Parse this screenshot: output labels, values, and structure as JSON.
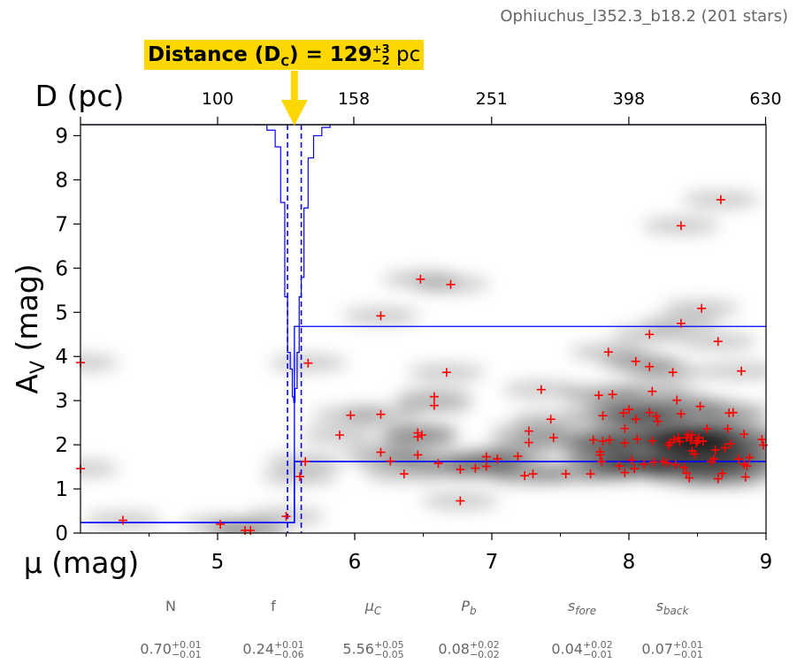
{
  "header": {
    "title": "Ophiuchus_l352.3_b18.2 (201 stars)",
    "distance_label": "Distance (D",
    "distance_sub": "C",
    "distance_eq": ") = 129",
    "distance_plus": "+3",
    "distance_minus": "−2",
    "distance_unit": " pc"
  },
  "chart_data": {
    "type": "scatter",
    "title": "Ophiuchus_l352.3_b18.2 (201 stars)",
    "xlabel": "μ (mag)",
    "ylabel": "A_V (mag)",
    "x2label": "D (pc)",
    "xlim": [
      4,
      9
    ],
    "ylim": [
      0,
      9.25
    ],
    "xticks": [
      5,
      6,
      7,
      8,
      9
    ],
    "xtick_labels": [
      "5",
      "6",
      "7",
      "8",
      "9"
    ],
    "yticks": [
      0,
      1,
      2,
      3,
      4,
      5,
      6,
      7,
      8,
      9
    ],
    "ytick_labels": [
      "0",
      "1",
      "2",
      "3",
      "4",
      "5",
      "6",
      "7",
      "8",
      "9"
    ],
    "top_ticks_pc": [
      100,
      158,
      251,
      398,
      630
    ],
    "top_tick_labels": [
      "100",
      "158",
      "251",
      "398",
      "630"
    ],
    "distance_pc": 129,
    "mu_c": 5.56,
    "mu_c_lo": 5.51,
    "mu_c_hi": 5.61,
    "av_fore": 0.24,
    "av_back": 1.62,
    "av_back_upper": 4.68,
    "marker_color": "#ff0000",
    "line_color": "#0000ff",
    "stars": [
      [
        4.0,
        3.86
      ],
      [
        4.0,
        1.46
      ],
      [
        4.31,
        0.29
      ],
      [
        5.02,
        0.2
      ],
      [
        5.2,
        0.06
      ],
      [
        5.24,
        0.06
      ],
      [
        5.5,
        0.38
      ],
      [
        5.6,
        1.28
      ],
      [
        5.64,
        1.62
      ],
      [
        5.66,
        3.85
      ],
      [
        5.89,
        2.22
      ],
      [
        5.97,
        2.67
      ],
      [
        6.19,
        4.92
      ],
      [
        6.19,
        2.69
      ],
      [
        6.19,
        1.83
      ],
      [
        6.26,
        1.63
      ],
      [
        6.36,
        1.34
      ],
      [
        6.46,
        2.27
      ],
      [
        6.46,
        2.18
      ],
      [
        6.46,
        1.77
      ],
      [
        6.48,
        5.75
      ],
      [
        6.49,
        2.22
      ],
      [
        6.58,
        3.09
      ],
      [
        6.58,
        2.89
      ],
      [
        6.61,
        1.58
      ],
      [
        6.67,
        3.64
      ],
      [
        6.7,
        5.63
      ],
      [
        6.77,
        1.44
      ],
      [
        6.77,
        0.73
      ],
      [
        6.88,
        1.47
      ],
      [
        6.96,
        1.51
      ],
      [
        6.96,
        1.73
      ],
      [
        7.04,
        1.68
      ],
      [
        7.19,
        1.74
      ],
      [
        7.24,
        1.3
      ],
      [
        7.27,
        2.31
      ],
      [
        7.27,
        2.05
      ],
      [
        7.3,
        1.34
      ],
      [
        7.36,
        3.25
      ],
      [
        7.43,
        2.58
      ],
      [
        7.45,
        2.16
      ],
      [
        7.54,
        1.34
      ],
      [
        7.72,
        1.34
      ],
      [
        7.74,
        2.11
      ],
      [
        7.78,
        3.12
      ],
      [
        7.79,
        1.84
      ],
      [
        7.79,
        1.77
      ],
      [
        7.8,
        1.62
      ],
      [
        7.81,
        2.08
      ],
      [
        7.81,
        2.66
      ],
      [
        7.85,
        4.1
      ],
      [
        7.86,
        2.11
      ],
      [
        7.88,
        3.14
      ],
      [
        7.93,
        1.52
      ],
      [
        7.96,
        2.72
      ],
      [
        7.97,
        2.37
      ],
      [
        7.97,
        2.04
      ],
      [
        7.97,
        1.37
      ],
      [
        8.0,
        2.8
      ],
      [
        8.02,
        1.65
      ],
      [
        8.04,
        1.46
      ],
      [
        8.05,
        3.89
      ],
      [
        8.05,
        2.58
      ],
      [
        8.06,
        2.13
      ],
      [
        8.11,
        1.56
      ],
      [
        8.15,
        4.5
      ],
      [
        8.15,
        3.77
      ],
      [
        8.15,
        2.73
      ],
      [
        8.17,
        3.21
      ],
      [
        8.17,
        2.09
      ],
      [
        8.18,
        1.61
      ],
      [
        8.2,
        2.65
      ],
      [
        8.21,
        2.53
      ],
      [
        8.25,
        1.62
      ],
      [
        8.28,
        1.59
      ],
      [
        8.29,
        1.99
      ],
      [
        8.3,
        2.05
      ],
      [
        8.32,
        3.64
      ],
      [
        8.33,
        2.12
      ],
      [
        8.34,
        1.55
      ],
      [
        8.35,
        3.01
      ],
      [
        8.36,
        2.16
      ],
      [
        8.37,
        2.07
      ],
      [
        8.38,
        6.96
      ],
      [
        8.38,
        4.75
      ],
      [
        8.38,
        2.7
      ],
      [
        8.4,
        1.49
      ],
      [
        8.42,
        1.36
      ],
      [
        8.42,
        2.16
      ],
      [
        8.43,
        2.23
      ],
      [
        8.44,
        1.25
      ],
      [
        8.45,
        2.1
      ],
      [
        8.46,
        2.22
      ],
      [
        8.46,
        1.86
      ],
      [
        8.48,
        1.79
      ],
      [
        8.49,
        2.04
      ],
      [
        8.5,
        2.09
      ],
      [
        8.51,
        2.16
      ],
      [
        8.52,
        2.87
      ],
      [
        8.53,
        5.09
      ],
      [
        8.54,
        2.08
      ],
      [
        8.57,
        2.36
      ],
      [
        8.6,
        1.62
      ],
      [
        8.62,
        1.68
      ],
      [
        8.63,
        1.88
      ],
      [
        8.65,
        4.34
      ],
      [
        8.65,
        1.23
      ],
      [
        8.67,
        7.55
      ],
      [
        8.68,
        1.35
      ],
      [
        8.7,
        1.93
      ],
      [
        8.72,
        2.36
      ],
      [
        8.73,
        2.72
      ],
      [
        8.74,
        2.02
      ],
      [
        8.76,
        2.73
      ],
      [
        8.8,
        1.68
      ],
      [
        8.82,
        3.67
      ],
      [
        8.84,
        1.56
      ],
      [
        8.84,
        2.24
      ],
      [
        8.85,
        1.27
      ],
      [
        8.86,
        1.52
      ],
      [
        8.88,
        1.71
      ],
      [
        8.97,
        2.12
      ],
      [
        8.98,
        1.99
      ]
    ]
  },
  "params": [
    {
      "name": "N",
      "val": "0.70",
      "up": "+0.01",
      "lo": "−0.01",
      "italic": false
    },
    {
      "name": "f",
      "val": "0.24",
      "up": "+0.01",
      "lo": "−0.06",
      "italic": false
    },
    {
      "name": "μ",
      "sub": "C",
      "val": "5.56",
      "up": "+0.05",
      "lo": "−0.05",
      "italic": true
    },
    {
      "name": "P",
      "sub": "b",
      "val": "0.08",
      "up": "+0.02",
      "lo": "−0.02",
      "italic": true
    },
    {
      "name": "s",
      "sub": "fore",
      "val": "0.04",
      "up": "+0.02",
      "lo": "−0.01",
      "italic": true
    },
    {
      "name": "s",
      "sub": "back",
      "val": "0.07",
      "up": "+0.01",
      "lo": "−0.01",
      "italic": true
    }
  ]
}
